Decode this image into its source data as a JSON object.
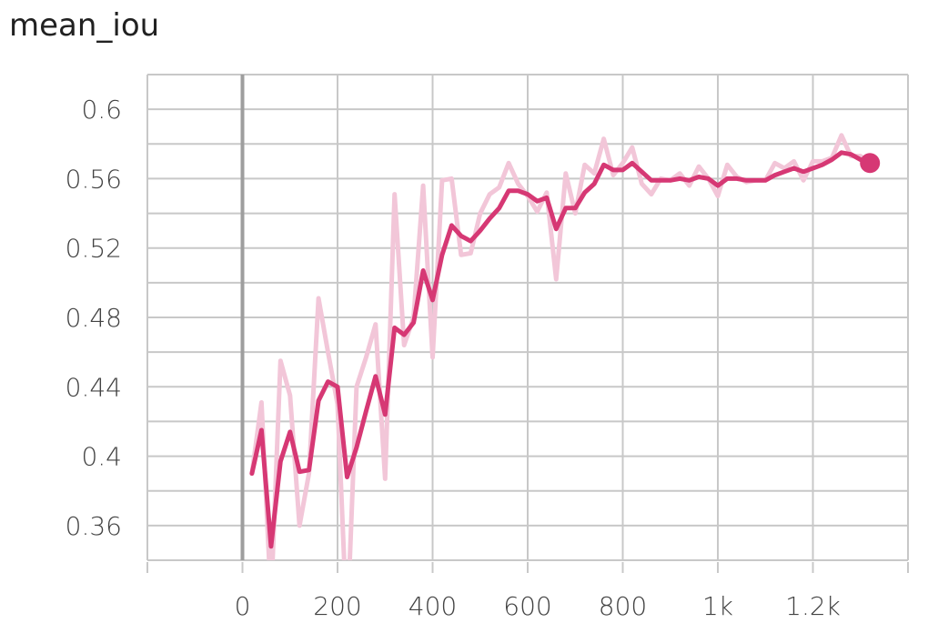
{
  "chart_data": {
    "type": "line",
    "title": "mean_iou",
    "xlabel": "",
    "ylabel": "",
    "xlim": [
      -200,
      1400
    ],
    "ylim": [
      0.34,
      0.62
    ],
    "x_ticks": [
      {
        "value": 0,
        "label": "0"
      },
      {
        "value": 200,
        "label": "200"
      },
      {
        "value": 400,
        "label": "400"
      },
      {
        "value": 600,
        "label": "600"
      },
      {
        "value": 800,
        "label": "800"
      },
      {
        "value": 1000,
        "label": "1k"
      },
      {
        "value": 1200,
        "label": "1.2k"
      }
    ],
    "y_ticks": [
      {
        "value": 0.36,
        "label": "0.36"
      },
      {
        "value": 0.4,
        "label": "0.4"
      },
      {
        "value": 0.44,
        "label": "0.44"
      },
      {
        "value": 0.48,
        "label": "0.48"
      },
      {
        "value": 0.52,
        "label": "0.52"
      },
      {
        "value": 0.56,
        "label": "0.56"
      },
      {
        "value": 0.6,
        "label": "0.6"
      }
    ],
    "grid": true,
    "colors": {
      "smoothed": "#d63874",
      "raw": "#f2c6d8",
      "grid": "#c8c8c8",
      "zero_line": "#9e9e9e"
    },
    "series": [
      {
        "role": "raw",
        "x": [
          20,
          40,
          60,
          80,
          100,
          120,
          140,
          160,
          180,
          200,
          220,
          240,
          260,
          280,
          300,
          320,
          340,
          360,
          380,
          400,
          420,
          440,
          460,
          480,
          500,
          520,
          540,
          560,
          580,
          600,
          620,
          640,
          660,
          680,
          700,
          720,
          740,
          760,
          780,
          800,
          820,
          840,
          860,
          880,
          900,
          920,
          940,
          960,
          980,
          1000,
          1020,
          1040,
          1060,
          1080,
          1100,
          1120,
          1140,
          1160,
          1180,
          1200,
          1220,
          1240,
          1260,
          1280,
          1300,
          1320
        ],
        "values": [
          0.39,
          0.431,
          0.317,
          0.455,
          0.435,
          0.36,
          0.39,
          0.491,
          0.46,
          0.43,
          0.3,
          0.44,
          0.457,
          0.476,
          0.387,
          0.551,
          0.464,
          0.48,
          0.556,
          0.457,
          0.559,
          0.56,
          0.516,
          0.517,
          0.54,
          0.551,
          0.555,
          0.569,
          0.557,
          0.55,
          0.541,
          0.552,
          0.502,
          0.563,
          0.54,
          0.568,
          0.563,
          0.583,
          0.562,
          0.569,
          0.578,
          0.557,
          0.551,
          0.56,
          0.559,
          0.563,
          0.556,
          0.567,
          0.56,
          0.55,
          0.568,
          0.561,
          0.558,
          0.559,
          0.559,
          0.569,
          0.566,
          0.57,
          0.559,
          0.57,
          0.57,
          0.572,
          0.585,
          0.573,
          0.573,
          0.569
        ]
      },
      {
        "role": "smoothed",
        "x": [
          20,
          40,
          60,
          80,
          100,
          120,
          140,
          160,
          180,
          200,
          220,
          240,
          260,
          280,
          300,
          320,
          340,
          360,
          380,
          400,
          420,
          440,
          460,
          480,
          500,
          520,
          540,
          560,
          580,
          600,
          620,
          640,
          660,
          680,
          700,
          720,
          740,
          760,
          780,
          800,
          820,
          840,
          860,
          880,
          900,
          920,
          940,
          960,
          980,
          1000,
          1020,
          1040,
          1060,
          1080,
          1100,
          1120,
          1140,
          1160,
          1180,
          1200,
          1220,
          1240,
          1260,
          1280,
          1300,
          1320
        ],
        "values": [
          0.39,
          0.415,
          0.348,
          0.397,
          0.414,
          0.391,
          0.392,
          0.432,
          0.443,
          0.44,
          0.388,
          0.405,
          0.426,
          0.446,
          0.424,
          0.474,
          0.47,
          0.477,
          0.507,
          0.49,
          0.516,
          0.533,
          0.527,
          0.524,
          0.53,
          0.537,
          0.543,
          0.553,
          0.553,
          0.551,
          0.547,
          0.549,
          0.531,
          0.543,
          0.543,
          0.552,
          0.557,
          0.568,
          0.565,
          0.565,
          0.569,
          0.564,
          0.559,
          0.559,
          0.559,
          0.56,
          0.559,
          0.561,
          0.56,
          0.556,
          0.56,
          0.56,
          0.559,
          0.559,
          0.559,
          0.562,
          0.564,
          0.566,
          0.564,
          0.566,
          0.568,
          0.571,
          0.575,
          0.574,
          0.571,
          0.569
        ]
      }
    ]
  }
}
